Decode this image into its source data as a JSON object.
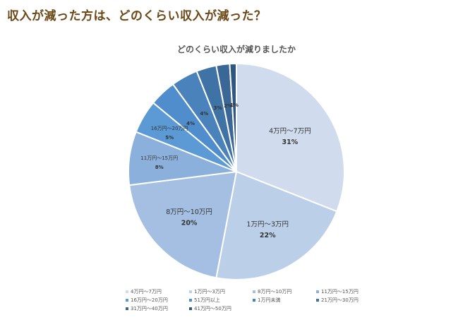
{
  "heading": "収入が減った方は、どのくらい収入が減った？",
  "chart_data": {
    "type": "pie",
    "title": "どのくらい収入が減りましたか",
    "unit": "%",
    "categories": [
      "4万円〜7万円",
      "1万円〜3万円",
      "8万円〜10万円",
      "11万円〜15万円",
      "16万円〜20万円",
      "51万円以上",
      "1万円未満",
      "21万円〜30万円",
      "31万円〜40万円",
      "41万円〜50万円"
    ],
    "values": [
      31,
      22,
      20,
      8,
      5,
      4,
      4,
      3,
      2,
      1
    ],
    "colors": [
      "#d0dcee",
      "#bccfe9",
      "#a4bfe2",
      "#8bb0dc",
      "#5c9ad6",
      "#4f8dcc",
      "#4a82bb",
      "#3f73a6",
      "#3a6795",
      "#2f5780"
    ],
    "show_category_label": [
      true,
      true,
      true,
      true,
      true,
      false,
      false,
      false,
      false,
      false
    ],
    "legend_placement": "bottom"
  }
}
